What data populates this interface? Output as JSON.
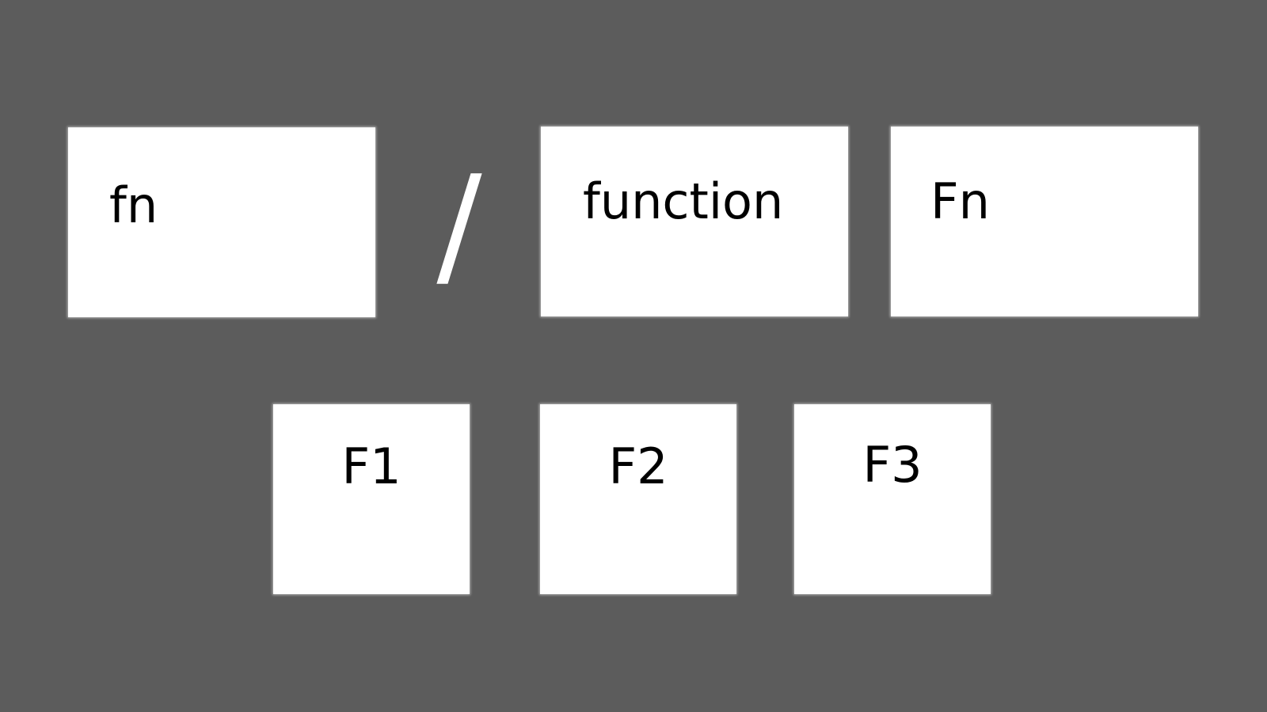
{
  "keys_top": {
    "fn": "fn",
    "separator": "/",
    "function": "function",
    "Fn": "Fn"
  },
  "keys_bottom": {
    "f1": "F1",
    "f2": "F2",
    "f3": "F3"
  },
  "colors": {
    "background": "#5c5c5c",
    "key_fill": "#ffffff",
    "text": "#000000"
  }
}
